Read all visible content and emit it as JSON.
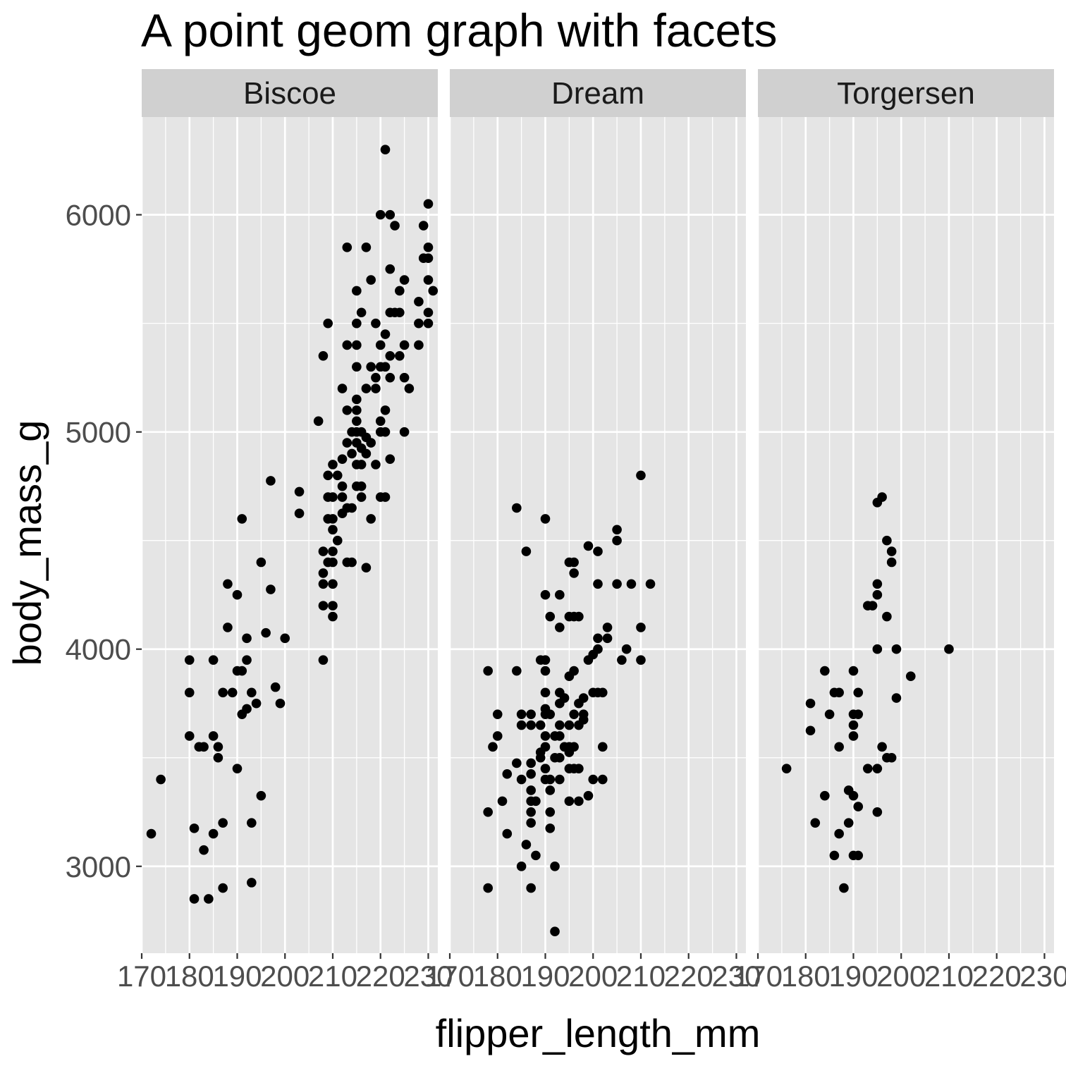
{
  "chart_data": {
    "type": "scatter",
    "title": "A point geom graph with facets",
    "xlabel": "flipper_length_mm",
    "ylabel": "body_mass_g",
    "xlim": [
      170,
      232
    ],
    "ylim": [
      2600,
      6450
    ],
    "x_ticks": [
      170,
      180,
      190,
      200,
      210,
      220,
      230
    ],
    "y_ticks": [
      3000,
      4000,
      5000,
      6000
    ],
    "grid": true,
    "point_color": "#000000",
    "panel_color": "#e5e5e5",
    "strip_color": "#d0d0d0",
    "facets": [
      {
        "name": "Biscoe",
        "points": [
          [
            172,
            3150
          ],
          [
            174,
            3400
          ],
          [
            180,
            3950
          ],
          [
            180,
            3800
          ],
          [
            180,
            3600
          ],
          [
            181,
            3175
          ],
          [
            181,
            2850
          ],
          [
            182,
            3550
          ],
          [
            183,
            3075
          ],
          [
            184,
            2850
          ],
          [
            183,
            3550
          ],
          [
            185,
            3950
          ],
          [
            185,
            3600
          ],
          [
            185,
            3150
          ],
          [
            186,
            3550
          ],
          [
            186,
            3500
          ],
          [
            187,
            3800
          ],
          [
            187,
            3200
          ],
          [
            187,
            2900
          ],
          [
            188,
            4300
          ],
          [
            188,
            4100
          ],
          [
            189,
            3800
          ],
          [
            190,
            4250
          ],
          [
            190,
            3900
          ],
          [
            190,
            3450
          ],
          [
            191,
            3900
          ],
          [
            191,
            4600
          ],
          [
            191,
            3700
          ],
          [
            192,
            4050
          ],
          [
            192,
            3950
          ],
          [
            192,
            3725
          ],
          [
            193,
            3800
          ],
          [
            193,
            3200
          ],
          [
            193,
            2925
          ],
          [
            194,
            3750
          ],
          [
            195,
            4400
          ],
          [
            195,
            3325
          ],
          [
            196,
            4075
          ],
          [
            197,
            4275
          ],
          [
            197,
            4775
          ],
          [
            198,
            3825
          ],
          [
            199,
            3750
          ],
          [
            200,
            4050
          ],
          [
            203,
            4725
          ],
          [
            203,
            4625
          ],
          [
            207,
            5050
          ],
          [
            208,
            5350
          ],
          [
            208,
            4450
          ],
          [
            208,
            4350
          ],
          [
            208,
            4300
          ],
          [
            208,
            4200
          ],
          [
            208,
            3950
          ],
          [
            209,
            5500
          ],
          [
            209,
            4800
          ],
          [
            209,
            4700
          ],
          [
            209,
            4600
          ],
          [
            209,
            4400
          ],
          [
            210,
            4850
          ],
          [
            210,
            4700
          ],
          [
            210,
            4600
          ],
          [
            210,
            4550
          ],
          [
            210,
            4450
          ],
          [
            210,
            4400
          ],
          [
            210,
            4300
          ],
          [
            210,
            4200
          ],
          [
            210,
            4150
          ],
          [
            211,
            4800
          ],
          [
            211,
            4500
          ],
          [
            212,
            4875
          ],
          [
            212,
            4750
          ],
          [
            212,
            4700
          ],
          [
            212,
            4625
          ],
          [
            212,
            5200
          ],
          [
            213,
            5850
          ],
          [
            213,
            5400
          ],
          [
            213,
            5100
          ],
          [
            213,
            4950
          ],
          [
            213,
            4650
          ],
          [
            213,
            4400
          ],
          [
            214,
            5000
          ],
          [
            214,
            4900
          ],
          [
            214,
            4650
          ],
          [
            214,
            4400
          ],
          [
            215,
            5650
          ],
          [
            215,
            5500
          ],
          [
            215,
            5400
          ],
          [
            215,
            5300
          ],
          [
            215,
            5150
          ],
          [
            215,
            5100
          ],
          [
            215,
            5050
          ],
          [
            215,
            5000
          ],
          [
            215,
            4950
          ],
          [
            215,
            4850
          ],
          [
            215,
            4750
          ],
          [
            216,
            5550
          ],
          [
            216,
            5000
          ],
          [
            216,
            4925
          ],
          [
            216,
            4850
          ],
          [
            216,
            4750
          ],
          [
            216,
            4700
          ],
          [
            217,
            5850
          ],
          [
            217,
            5200
          ],
          [
            217,
            4975
          ],
          [
            217,
            4900
          ],
          [
            217,
            4375
          ],
          [
            218,
            5700
          ],
          [
            218,
            5300
          ],
          [
            218,
            4950
          ],
          [
            218,
            4600
          ],
          [
            219,
            5500
          ],
          [
            219,
            5250
          ],
          [
            219,
            4850
          ],
          [
            219,
            5200
          ],
          [
            220,
            6000
          ],
          [
            220,
            5400
          ],
          [
            220,
            5300
          ],
          [
            220,
            5050
          ],
          [
            220,
            5000
          ],
          [
            220,
            4700
          ],
          [
            221,
            6300
          ],
          [
            221,
            5450
          ],
          [
            221,
            5300
          ],
          [
            221,
            5100
          ],
          [
            221,
            5000
          ],
          [
            221,
            4700
          ],
          [
            222,
            6000
          ],
          [
            222,
            5750
          ],
          [
            222,
            5550
          ],
          [
            222,
            5350
          ],
          [
            222,
            5250
          ],
          [
            222,
            4875
          ],
          [
            223,
            5950
          ],
          [
            223,
            5550
          ],
          [
            224,
            5650
          ],
          [
            224,
            5550
          ],
          [
            224,
            5350
          ],
          [
            225,
            5700
          ],
          [
            225,
            5400
          ],
          [
            225,
            5250
          ],
          [
            225,
            5000
          ],
          [
            226,
            5200
          ],
          [
            228,
            5600
          ],
          [
            228,
            5500
          ],
          [
            228,
            5400
          ],
          [
            229,
            5950
          ],
          [
            229,
            5800
          ],
          [
            230,
            6050
          ],
          [
            230,
            5850
          ],
          [
            230,
            5800
          ],
          [
            230,
            5700
          ],
          [
            230,
            5550
          ],
          [
            230,
            5500
          ],
          [
            231,
            5650
          ]
        ]
      },
      {
        "name": "Dream",
        "points": [
          [
            178,
            3900
          ],
          [
            178,
            3250
          ],
          [
            178,
            2900
          ],
          [
            179,
            3550
          ],
          [
            180,
            3700
          ],
          [
            180,
            3600
          ],
          [
            181,
            3300
          ],
          [
            182,
            3425
          ],
          [
            182,
            3150
          ],
          [
            184,
            4650
          ],
          [
            184,
            3900
          ],
          [
            184,
            3475
          ],
          [
            185,
            3700
          ],
          [
            185,
            3650
          ],
          [
            185,
            3400
          ],
          [
            185,
            3000
          ],
          [
            186,
            4450
          ],
          [
            186,
            3100
          ],
          [
            187,
            3700
          ],
          [
            187,
            3650
          ],
          [
            187,
            3475
          ],
          [
            187,
            3425
          ],
          [
            187,
            3350
          ],
          [
            187,
            3300
          ],
          [
            187,
            3250
          ],
          [
            187,
            3200
          ],
          [
            187,
            2900
          ],
          [
            188,
            3300
          ],
          [
            188,
            3050
          ],
          [
            189,
            3650
          ],
          [
            189,
            3950
          ],
          [
            189,
            3525
          ],
          [
            189,
            3500
          ],
          [
            190,
            4600
          ],
          [
            190,
            4250
          ],
          [
            190,
            3950
          ],
          [
            190,
            3900
          ],
          [
            190,
            3800
          ],
          [
            190,
            3725
          ],
          [
            190,
            3700
          ],
          [
            190,
            3600
          ],
          [
            190,
            3550
          ],
          [
            190,
            3450
          ],
          [
            190,
            3400
          ],
          [
            191,
            4150
          ],
          [
            191,
            3700
          ],
          [
            191,
            3400
          ],
          [
            191,
            3250
          ],
          [
            191,
            3350
          ],
          [
            191,
            3175
          ],
          [
            192,
            3500
          ],
          [
            192,
            3600
          ],
          [
            192,
            2700
          ],
          [
            192,
            3000
          ],
          [
            193,
            4250
          ],
          [
            193,
            4100
          ],
          [
            193,
            3800
          ],
          [
            193,
            3750
          ],
          [
            193,
            3650
          ],
          [
            193,
            3600
          ],
          [
            193,
            3500
          ],
          [
            193,
            3400
          ],
          [
            194,
            3775
          ],
          [
            194,
            3550
          ],
          [
            195,
            3650
          ],
          [
            195,
            3550
          ],
          [
            195,
            3525
          ],
          [
            195,
            3450
          ],
          [
            195,
            4150
          ],
          [
            195,
            3875
          ],
          [
            195,
            3300
          ],
          [
            195,
            4400
          ],
          [
            196,
            4400
          ],
          [
            196,
            4350
          ],
          [
            196,
            4150
          ],
          [
            196,
            3900
          ],
          [
            196,
            3700
          ],
          [
            196,
            3550
          ],
          [
            196,
            3450
          ],
          [
            197,
            4150
          ],
          [
            197,
            3750
          ],
          [
            197,
            3650
          ],
          [
            197,
            3450
          ],
          [
            197,
            3300
          ],
          [
            198,
            3775
          ],
          [
            198,
            3700
          ],
          [
            198,
            3675
          ],
          [
            199,
            3950
          ],
          [
            199,
            4475
          ],
          [
            199,
            3325
          ],
          [
            200,
            3800
          ],
          [
            200,
            3975
          ],
          [
            200,
            3400
          ],
          [
            201,
            4450
          ],
          [
            201,
            4300
          ],
          [
            201,
            4050
          ],
          [
            201,
            4000
          ],
          [
            201,
            3800
          ],
          [
            202,
            3400
          ],
          [
            202,
            3550
          ],
          [
            202,
            3800
          ],
          [
            203,
            4100
          ],
          [
            203,
            4050
          ],
          [
            205,
            4550
          ],
          [
            205,
            4500
          ],
          [
            205,
            4300
          ],
          [
            206,
            3950
          ],
          [
            207,
            4000
          ],
          [
            208,
            4300
          ],
          [
            210,
            4800
          ],
          [
            210,
            4100
          ],
          [
            210,
            3950
          ],
          [
            212,
            4300
          ]
        ]
      },
      {
        "name": "Torgersen",
        "points": [
          [
            176,
            3450
          ],
          [
            181,
            3750
          ],
          [
            181,
            3625
          ],
          [
            182,
            3200
          ],
          [
            184,
            3900
          ],
          [
            184,
            3325
          ],
          [
            185,
            3700
          ],
          [
            186,
            3800
          ],
          [
            186,
            3050
          ],
          [
            187,
            3800
          ],
          [
            187,
            3550
          ],
          [
            187,
            3150
          ],
          [
            188,
            2900
          ],
          [
            189,
            3200
          ],
          [
            189,
            3350
          ],
          [
            190,
            3900
          ],
          [
            190,
            3700
          ],
          [
            190,
            3650
          ],
          [
            190,
            3600
          ],
          [
            190,
            3325
          ],
          [
            190,
            3050
          ],
          [
            191,
            3800
          ],
          [
            191,
            3700
          ],
          [
            191,
            3275
          ],
          [
            191,
            3050
          ],
          [
            193,
            4200
          ],
          [
            193,
            3450
          ],
          [
            194,
            4200
          ],
          [
            195,
            4675
          ],
          [
            195,
            4300
          ],
          [
            195,
            4250
          ],
          [
            195,
            4000
          ],
          [
            195,
            3450
          ],
          [
            195,
            3250
          ],
          [
            196,
            4700
          ],
          [
            196,
            3550
          ],
          [
            197,
            4500
          ],
          [
            197,
            4150
          ],
          [
            197,
            3500
          ],
          [
            198,
            4450
          ],
          [
            198,
            4400
          ],
          [
            198,
            3500
          ],
          [
            199,
            4000
          ],
          [
            199,
            3775
          ],
          [
            202,
            3875
          ],
          [
            210,
            4000
          ]
        ]
      }
    ]
  }
}
